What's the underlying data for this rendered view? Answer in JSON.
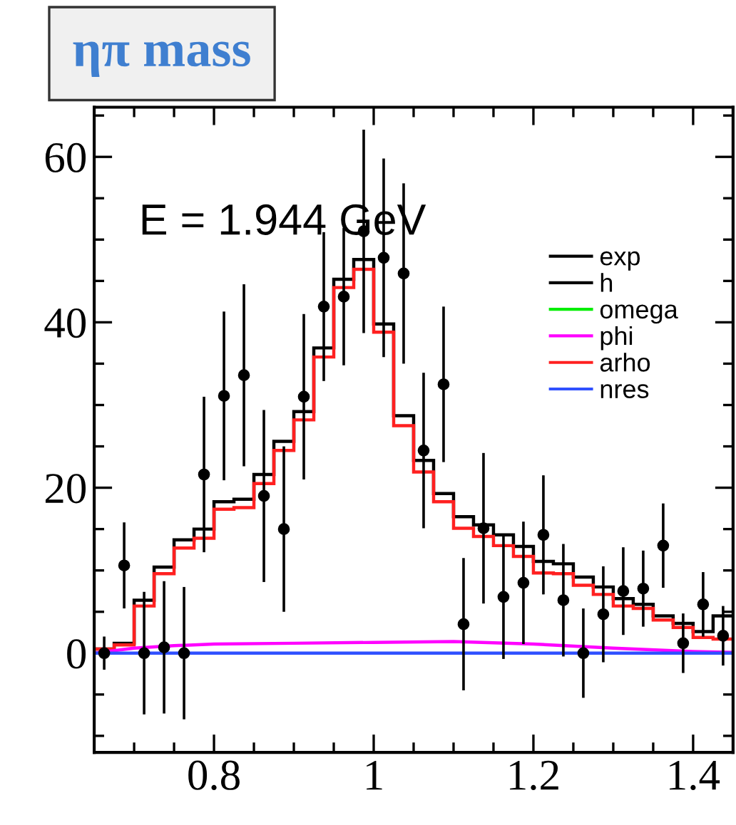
{
  "chart_data": {
    "type": "histogram",
    "title": "ηπ mass",
    "annotations": [
      "E = 1.944 GeV"
    ],
    "bins": [
      0.65,
      0.675,
      0.7,
      0.725,
      0.75,
      0.775,
      0.8,
      0.825,
      0.85,
      0.875,
      0.9,
      0.925,
      0.95,
      0.975,
      1.0,
      1.025,
      1.05,
      1.075,
      1.1,
      1.125,
      1.15,
      1.175,
      1.2,
      1.225,
      1.25,
      1.275,
      1.3,
      1.325,
      1.35,
      1.375,
      1.4,
      1.425,
      1.45
    ],
    "series": [
      {
        "name": "exp",
        "type": "scatter",
        "marker": "circle",
        "color": "#000000",
        "x": [
          0.6625,
          0.6875,
          0.7125,
          0.7375,
          0.7625,
          0.7875,
          0.8125,
          0.8375,
          0.8625,
          0.8875,
          0.9125,
          0.9375,
          0.9625,
          0.9875,
          1.0125,
          1.0375,
          1.0625,
          1.0875,
          1.1125,
          1.1375,
          1.1625,
          1.1875,
          1.2125,
          1.2375,
          1.2625,
          1.2875,
          1.3125,
          1.3375,
          1.3625,
          1.3875,
          1.4125,
          1.4375
        ],
        "values": [
          0,
          10.6,
          0,
          0.7,
          0,
          21.6,
          31.1,
          33.6,
          19,
          15,
          31,
          41.9,
          43.1,
          51,
          47.8,
          45.9,
          24.5,
          32.5,
          3.5,
          15.1,
          6.8,
          8.5,
          14.3,
          6.4,
          0,
          4.7,
          7.5,
          7.8,
          13,
          1.2,
          5.9,
          2.1
        ],
        "errors": [
          2,
          5.2,
          7.4,
          8,
          8,
          9.4,
          10.2,
          11,
          10.4,
          10,
          10,
          9,
          8.3,
          12.3,
          12,
          10.9,
          9.4,
          9.4,
          8,
          9.1,
          7.5,
          7.4,
          7.2,
          6.8,
          5.4,
          5.8,
          5.3,
          4.6,
          5.1,
          3.6,
          3.9,
          3.6
        ]
      },
      {
        "name": "h",
        "color": "#000000",
        "values": [
          0.5,
          1.2,
          6.4,
          10.4,
          13.7,
          15,
          18.3,
          18.6,
          21.6,
          25.6,
          29.2,
          36.9,
          45.2,
          47.6,
          39.8,
          28.7,
          23.3,
          19.3,
          16.5,
          15.5,
          14.3,
          12.9,
          11.1,
          10.8,
          9.2,
          8,
          6.6,
          5.9,
          4.5,
          3.6,
          2.6,
          4.5
        ]
      },
      {
        "name": "omega",
        "type": "line",
        "color": "#00ee00"
      },
      {
        "name": "phi",
        "type": "line",
        "color": "#ff00ff",
        "x": [
          0.65,
          0.7,
          0.75,
          0.8,
          0.9,
          1.0,
          1.1,
          1.2,
          1.3,
          1.4,
          1.45
        ],
        "values": [
          0,
          0.6,
          0.9,
          1.1,
          1.2,
          1.3,
          1.4,
          1.1,
          0.6,
          0.2,
          0.1
        ]
      },
      {
        "name": "arho",
        "color": "#ff2020",
        "values": [
          0.5,
          1.0,
          5.7,
          9.6,
          12.7,
          13.9,
          17.4,
          17.6,
          20.5,
          24.5,
          28.2,
          35.8,
          44.2,
          46.4,
          38.8,
          27.5,
          21.9,
          18.3,
          15.1,
          14.1,
          13,
          11.7,
          9.7,
          9.6,
          8.2,
          7.1,
          5.7,
          5.4,
          4,
          3.1,
          1.9,
          1.7
        ]
      },
      {
        "name": "nres",
        "type": "line",
        "color": "#3050ff",
        "x": [
          0.65,
          1.45
        ],
        "values": [
          0,
          0
        ]
      }
    ],
    "xlim": [
      0.65,
      1.45
    ],
    "ylim": [
      -12,
      66
    ],
    "xticks": [
      {
        "value": 0.7,
        "label": null
      },
      {
        "value": 0.75,
        "label": null
      },
      0.8,
      {
        "value": 0.85,
        "label": null
      },
      {
        "value": 0.9,
        "label": null
      },
      {
        "value": 0.95,
        "label": null
      },
      1,
      {
        "value": 1.05,
        "label": null
      },
      {
        "value": 1.1,
        "label": null
      },
      {
        "value": 1.15,
        "label": null
      },
      1.2,
      {
        "value": 1.25,
        "label": null
      },
      {
        "value": 1.3,
        "label": null
      },
      {
        "value": 1.35,
        "label": null
      },
      1.4
    ],
    "yticks": [
      {
        "value": -10,
        "label": null
      },
      {
        "value": -5,
        "label": null
      },
      0,
      {
        "value": 5,
        "label": null
      },
      {
        "value": 10,
        "label": null
      },
      {
        "value": 15,
        "label": null
      },
      20,
      {
        "value": 25,
        "label": null
      },
      {
        "value": 30,
        "label": null
      },
      {
        "value": 35,
        "label": null
      },
      40,
      {
        "value": 45,
        "label": null
      },
      {
        "value": 50,
        "label": null
      },
      {
        "value": 55,
        "label": null
      },
      60,
      {
        "value": 65,
        "label": null
      }
    ],
    "grid": false,
    "legend": "top right"
  }
}
